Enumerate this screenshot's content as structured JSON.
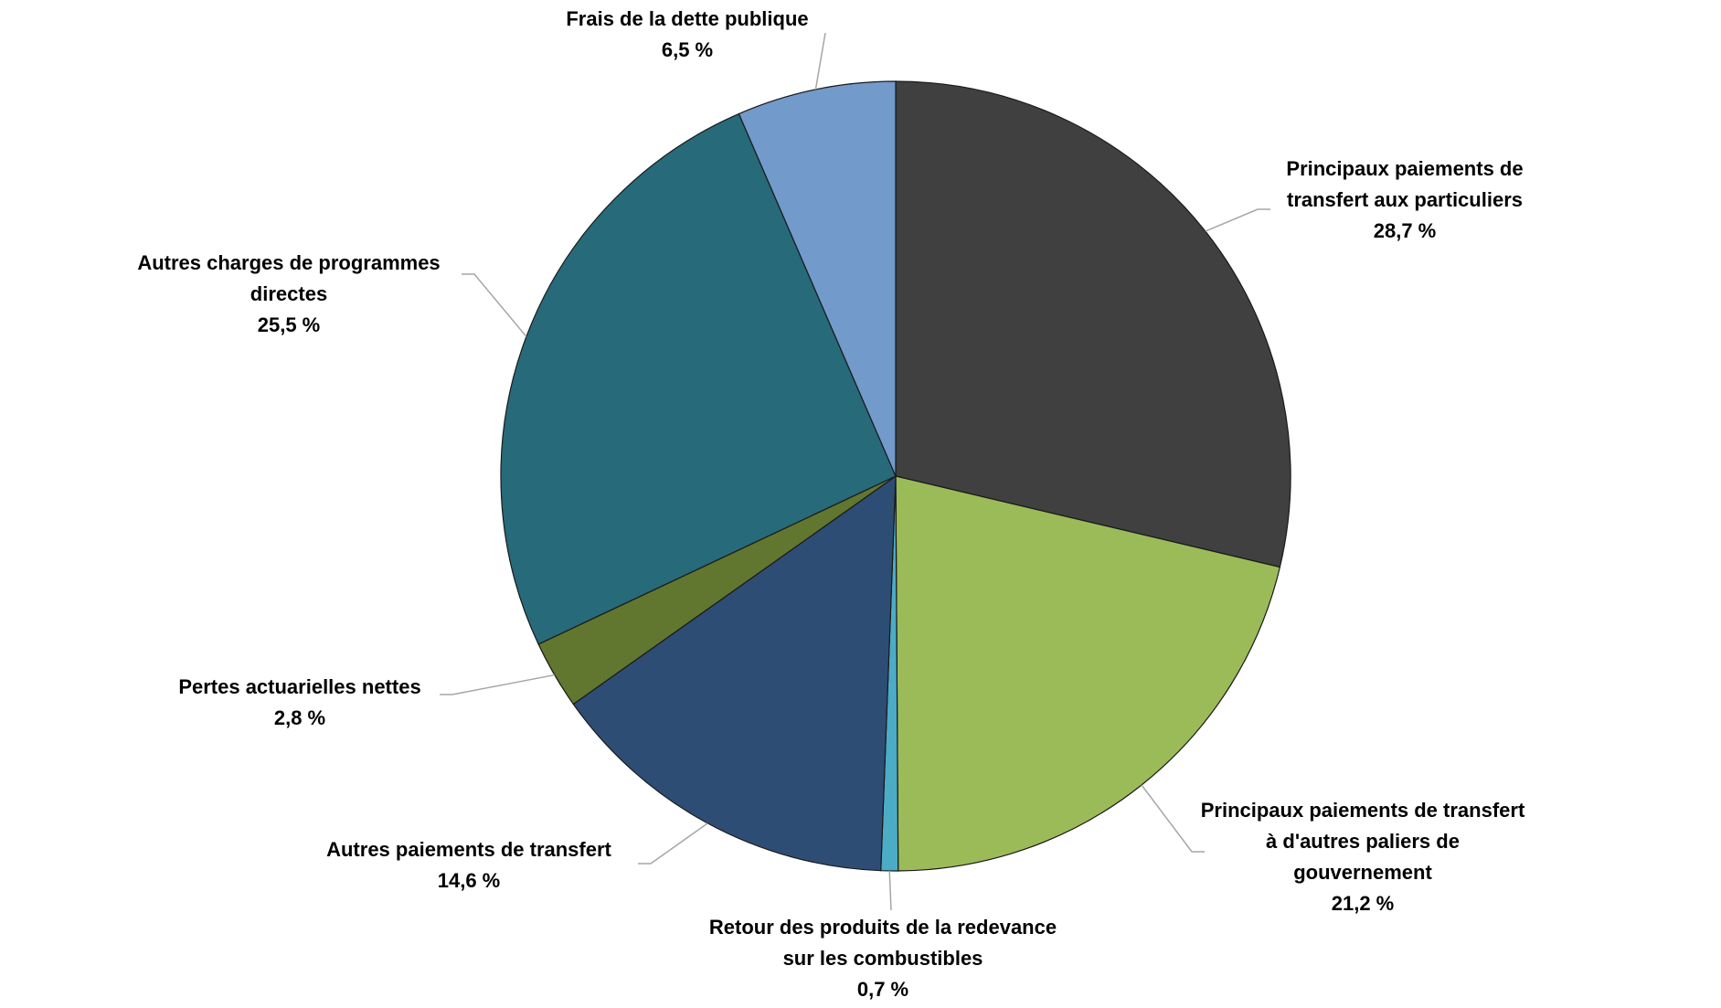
{
  "chart_data": {
    "type": "pie",
    "categories": [
      "Principaux paiements de transfert aux particuliers",
      "Principaux paiements de transfert à d'autres paliers de gouvernement",
      "Retour des produits de la redevance sur les combustibles",
      "Autres paiements de transfert",
      "Pertes actuarielles nettes",
      "Autres charges de programmes directes",
      "Frais de la dette publique"
    ],
    "values": [
      28.7,
      21.2,
      0.7,
      14.6,
      2.8,
      25.5,
      6.5
    ],
    "value_labels": [
      "28,7 %",
      "21,2 %",
      "0,7 %",
      "14,6 %",
      "2,8 %",
      "25,5 %",
      "6,5 %"
    ],
    "colors": [
      "#404040",
      "#9bbb59",
      "#4bacc6",
      "#2e4d75",
      "#61762f",
      "#276a7a",
      "#729aca"
    ]
  }
}
